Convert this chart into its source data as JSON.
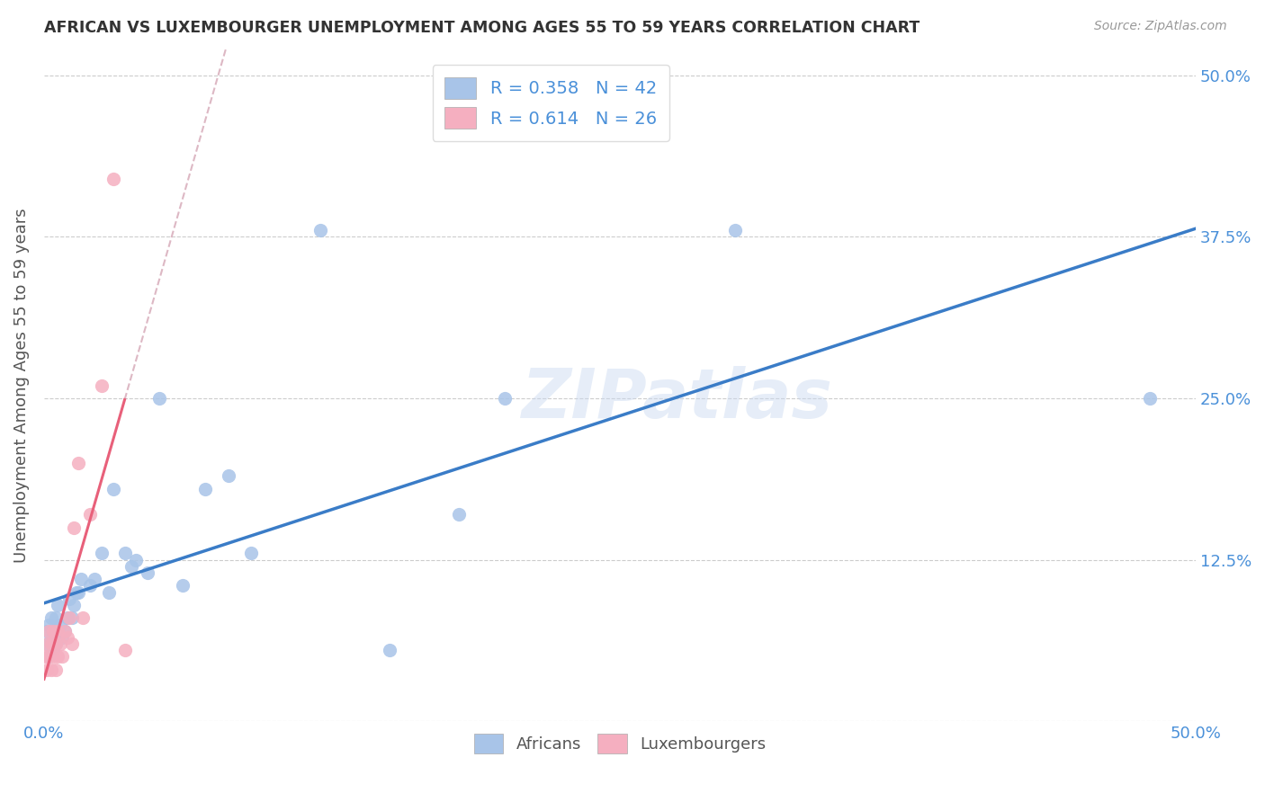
{
  "title": "AFRICAN VS LUXEMBOURGER UNEMPLOYMENT AMONG AGES 55 TO 59 YEARS CORRELATION CHART",
  "source": "Source: ZipAtlas.com",
  "ylabel": "Unemployment Among Ages 55 to 59 years",
  "xlim": [
    0.0,
    0.5
  ],
  "ylim": [
    0.0,
    0.52
  ],
  "african_R": 0.358,
  "african_N": 42,
  "luxembourger_R": 0.614,
  "luxembourger_N": 26,
  "african_color": "#a8c4e8",
  "luxembourger_color": "#f5afc0",
  "african_line_color": "#3a7cc7",
  "luxembourger_line_color": "#e8607a",
  "luxembourger_line_dashed_color": "#ddb8c4",
  "background_color": "#ffffff",
  "watermark": "ZIPatlas",
  "africans_x": [
    0.001,
    0.001,
    0.002,
    0.002,
    0.003,
    0.003,
    0.004,
    0.004,
    0.005,
    0.005,
    0.006,
    0.006,
    0.007,
    0.008,
    0.009,
    0.01,
    0.011,
    0.012,
    0.013,
    0.014,
    0.015,
    0.016,
    0.02,
    0.022,
    0.025,
    0.028,
    0.03,
    0.035,
    0.038,
    0.04,
    0.045,
    0.05,
    0.06,
    0.07,
    0.08,
    0.09,
    0.12,
    0.15,
    0.18,
    0.2,
    0.3,
    0.48
  ],
  "africans_y": [
    0.06,
    0.07,
    0.05,
    0.075,
    0.06,
    0.08,
    0.055,
    0.07,
    0.06,
    0.08,
    0.07,
    0.09,
    0.075,
    0.065,
    0.07,
    0.08,
    0.095,
    0.08,
    0.09,
    0.1,
    0.1,
    0.11,
    0.105,
    0.11,
    0.13,
    0.1,
    0.18,
    0.13,
    0.12,
    0.125,
    0.115,
    0.25,
    0.105,
    0.18,
    0.19,
    0.13,
    0.38,
    0.055,
    0.16,
    0.25,
    0.38,
    0.25
  ],
  "luxembourgers_x": [
    0.0,
    0.001,
    0.001,
    0.002,
    0.002,
    0.003,
    0.003,
    0.004,
    0.004,
    0.005,
    0.005,
    0.006,
    0.006,
    0.007,
    0.008,
    0.009,
    0.01,
    0.011,
    0.012,
    0.013,
    0.015,
    0.017,
    0.02,
    0.025,
    0.03,
    0.035
  ],
  "luxembourgers_y": [
    0.05,
    0.04,
    0.06,
    0.05,
    0.07,
    0.04,
    0.06,
    0.05,
    0.07,
    0.04,
    0.06,
    0.05,
    0.07,
    0.06,
    0.05,
    0.07,
    0.065,
    0.08,
    0.06,
    0.15,
    0.2,
    0.08,
    0.16,
    0.26,
    0.42,
    0.055
  ]
}
